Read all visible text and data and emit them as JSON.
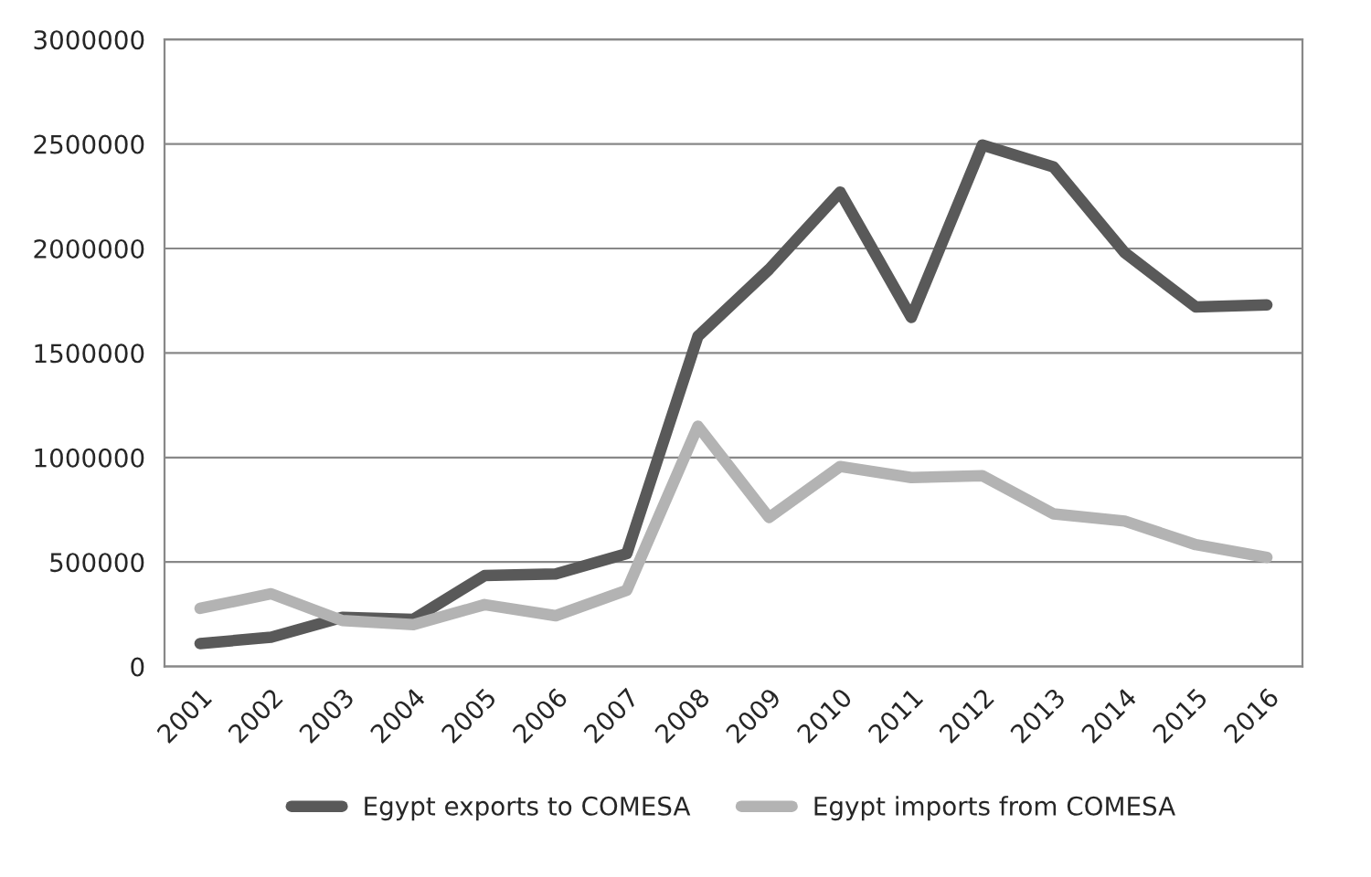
{
  "chart_data": {
    "type": "line",
    "categories": [
      "2001",
      "2002",
      "2003",
      "2004",
      "2005",
      "2006",
      "2007",
      "2008",
      "2009",
      "2010",
      "2011",
      "2012",
      "2013",
      "2014",
      "2015",
      "2016"
    ],
    "series": [
      {
        "name": "Egypt exports to COMESA",
        "color": "#595959",
        "values": [
          110000,
          140000,
          235000,
          226000,
          435000,
          443000,
          540000,
          1580000,
          1900000,
          2270000,
          1670000,
          2495000,
          2390000,
          1980000,
          1720000,
          1730000
        ]
      },
      {
        "name": "Egypt imports from COMESA",
        "color": "#b3b3b3",
        "values": [
          278000,
          348000,
          220000,
          200000,
          296000,
          243000,
          365000,
          1150000,
          713000,
          957000,
          904000,
          913000,
          730000,
          696000,
          583000,
          522000
        ]
      }
    ],
    "ylim": [
      0,
      3000000
    ],
    "yticks": [
      0,
      500000,
      1000000,
      1500000,
      2000000,
      2500000,
      3000000
    ],
    "grid": "y",
    "legend": "bottom",
    "marker": "none",
    "line_style": "solid"
  }
}
